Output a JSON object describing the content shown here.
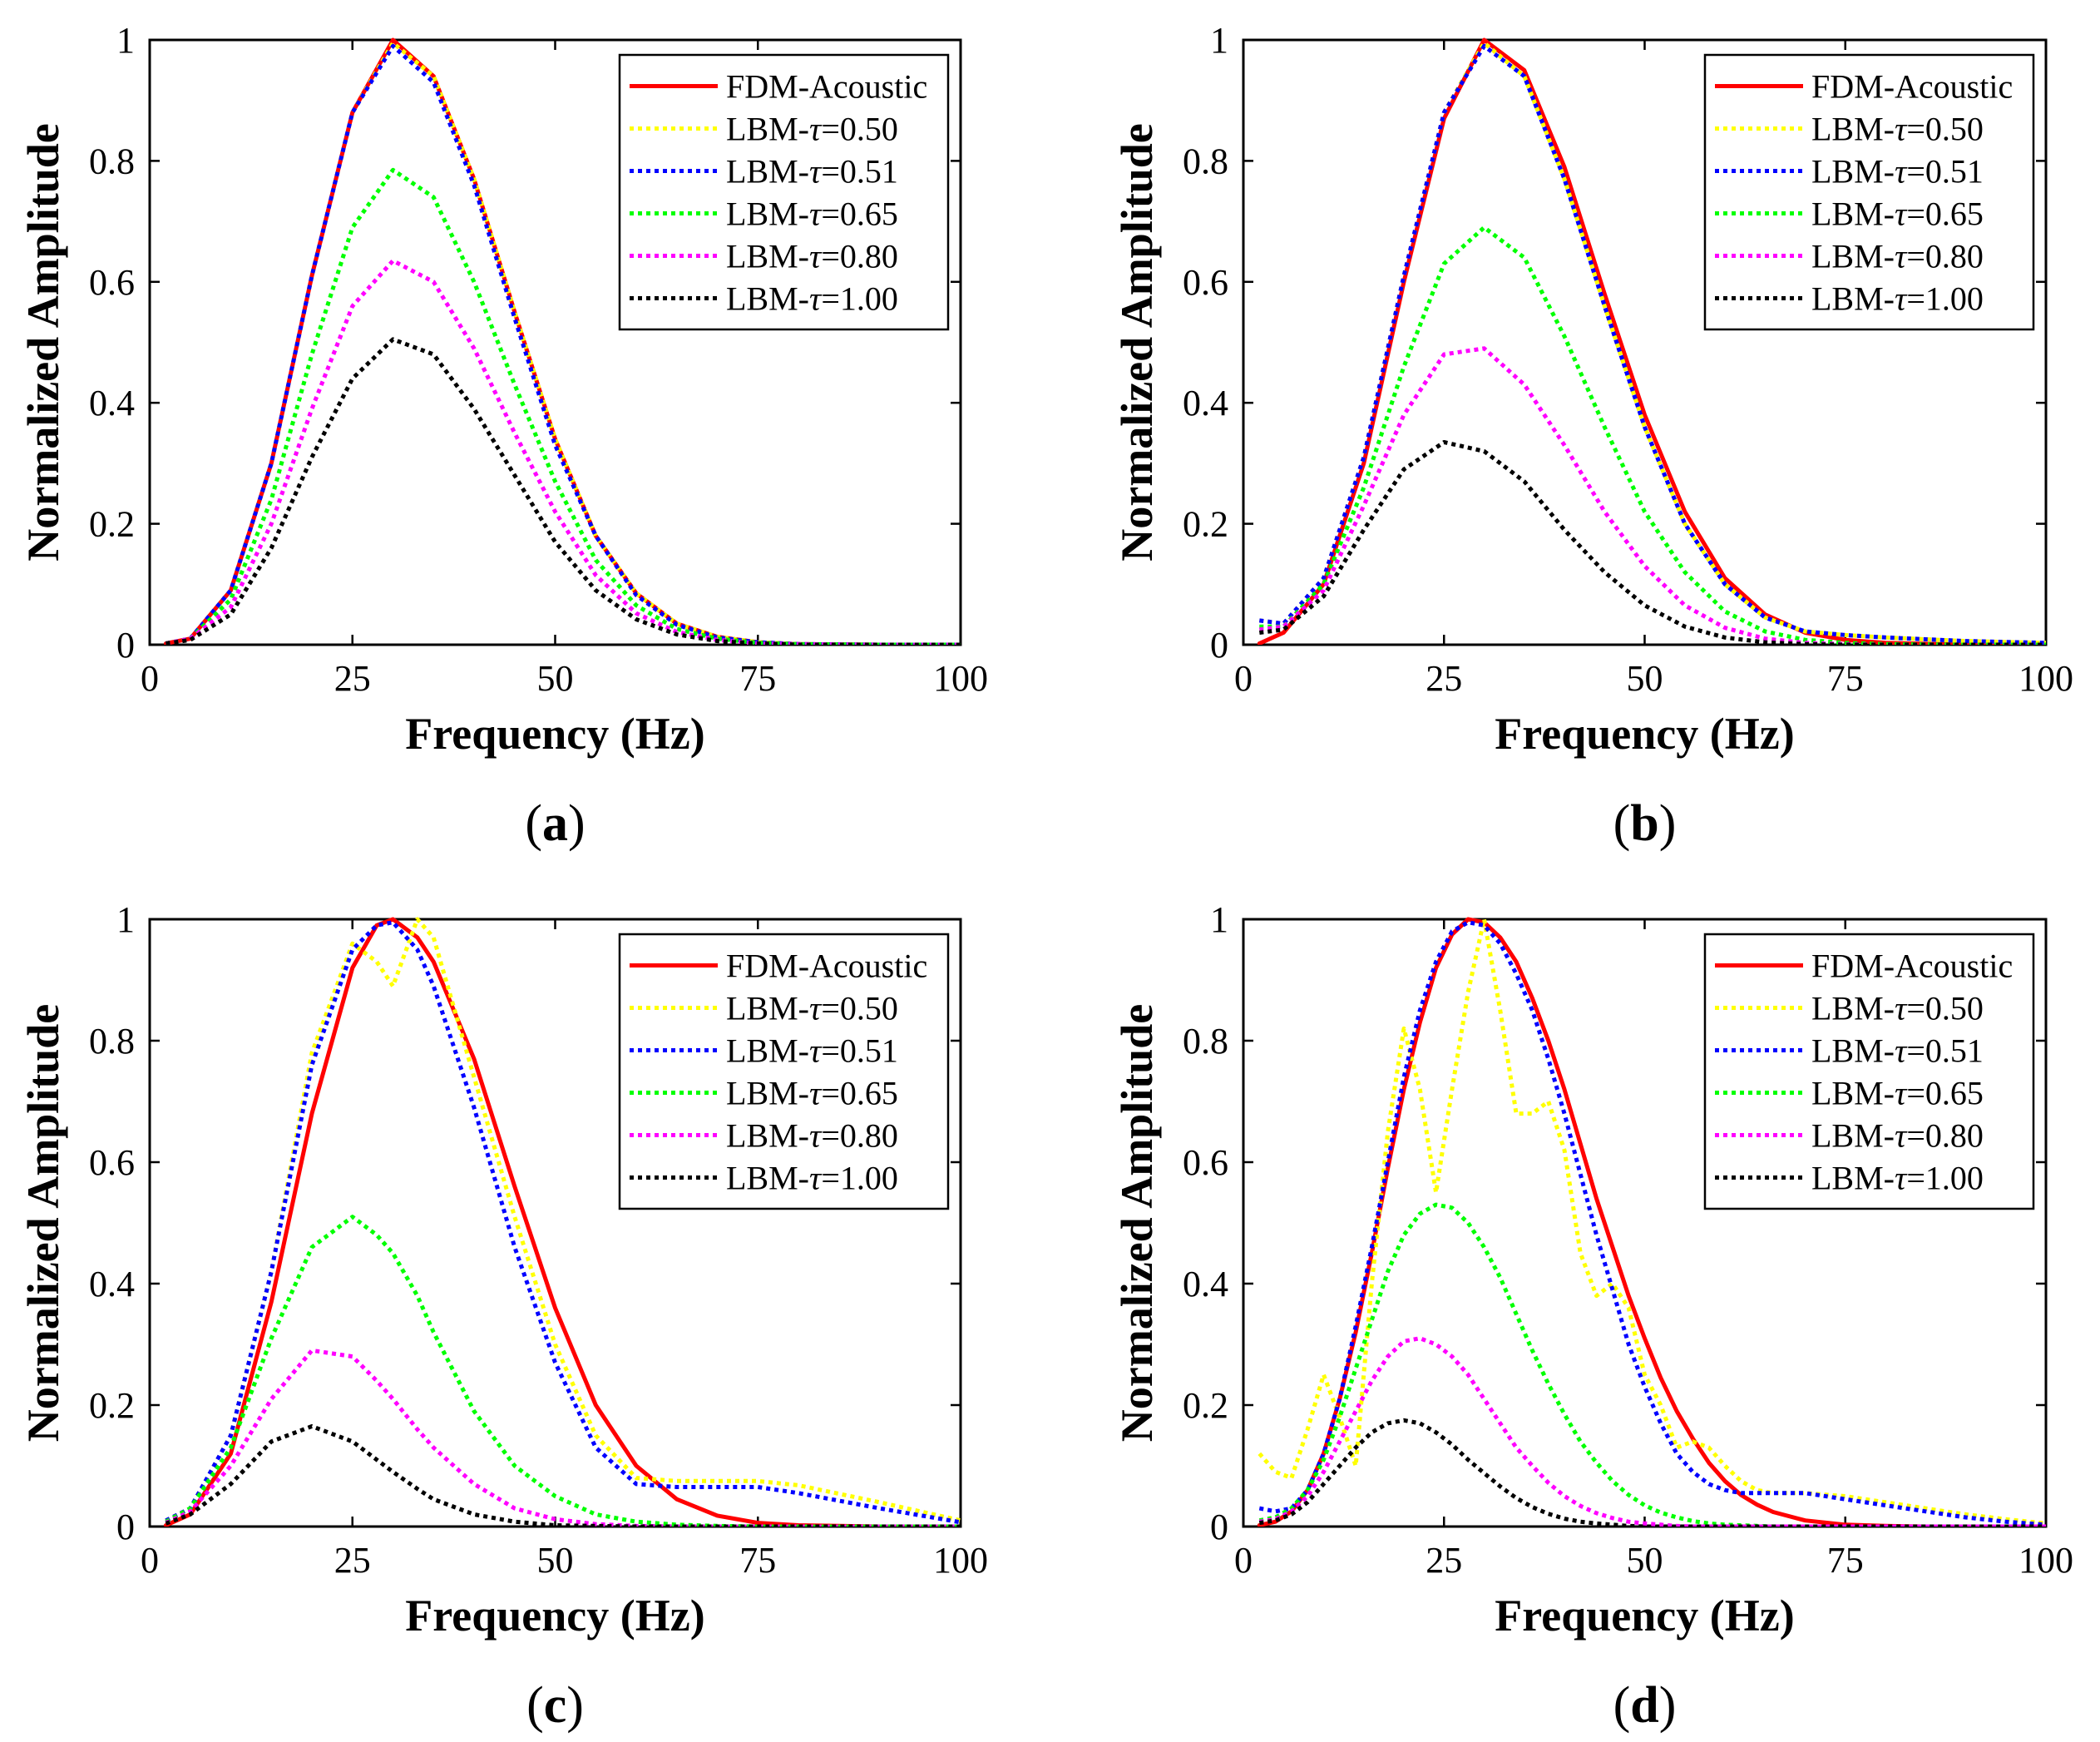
{
  "chart_data": [
    {
      "panel_label": "(a)",
      "type": "line",
      "xlabel": "Frequency (Hz)",
      "ylabel": "Normalized Amplitude",
      "xlim": [
        0,
        100
      ],
      "ylim": [
        0,
        1
      ],
      "xticks": [
        "0",
        "25",
        "50",
        "75",
        "100"
      ],
      "yticks": [
        "0",
        "0.2",
        "0.4",
        "0.6",
        "0.8",
        "1"
      ],
      "legend_position": "top-right",
      "x": [
        2,
        5,
        10,
        15,
        20,
        25,
        30,
        35,
        40,
        45,
        50,
        55,
        60,
        65,
        70,
        75,
        80,
        90,
        100
      ],
      "series": [
        {
          "name": "FDM-Acoustic",
          "color": "#ff0000",
          "style": "solid",
          "values": [
            0.002,
            0.01,
            0.09,
            0.3,
            0.61,
            0.88,
            1.0,
            0.94,
            0.77,
            0.55,
            0.34,
            0.18,
            0.085,
            0.035,
            0.013,
            0.004,
            0.001,
            0,
            0
          ]
        },
        {
          "name": "LBM-τ=0.50",
          "color": "#ffff00",
          "style": "dotted",
          "values": [
            0.002,
            0.01,
            0.09,
            0.3,
            0.61,
            0.88,
            0.995,
            0.94,
            0.77,
            0.55,
            0.34,
            0.18,
            0.085,
            0.035,
            0.013,
            0.004,
            0.001,
            0,
            0
          ]
        },
        {
          "name": "LBM-τ=0.51",
          "color": "#0000ff",
          "style": "dotted",
          "values": [
            0.002,
            0.01,
            0.09,
            0.3,
            0.61,
            0.88,
            0.99,
            0.93,
            0.76,
            0.54,
            0.33,
            0.18,
            0.082,
            0.033,
            0.012,
            0.004,
            0.001,
            0,
            0
          ]
        },
        {
          "name": "LBM-τ=0.65",
          "color": "#00ff00",
          "style": "dotted",
          "values": [
            0.002,
            0.01,
            0.075,
            0.24,
            0.48,
            0.69,
            0.785,
            0.74,
            0.6,
            0.43,
            0.27,
            0.14,
            0.065,
            0.026,
            0.01,
            0.003,
            0.001,
            0,
            0
          ]
        },
        {
          "name": "LBM-τ=0.80",
          "color": "#ff00ff",
          "style": "dotted",
          "values": [
            0.002,
            0.01,
            0.062,
            0.2,
            0.39,
            0.56,
            0.635,
            0.6,
            0.49,
            0.35,
            0.22,
            0.115,
            0.052,
            0.021,
            0.008,
            0.002,
            0.001,
            0,
            0
          ]
        },
        {
          "name": "LBM-τ=1.00",
          "color": "#000000",
          "style": "dotted",
          "values": [
            0.002,
            0.008,
            0.05,
            0.16,
            0.31,
            0.44,
            0.505,
            0.48,
            0.39,
            0.28,
            0.17,
            0.09,
            0.042,
            0.017,
            0.006,
            0.002,
            0,
            0,
            0
          ]
        }
      ]
    },
    {
      "panel_label": "(b)",
      "type": "line",
      "xlabel": "Frequency (Hz)",
      "ylabel": "Normalized Amplitude",
      "xlim": [
        0,
        100
      ],
      "ylim": [
        0,
        1
      ],
      "xticks": [
        "0",
        "25",
        "50",
        "75",
        "100"
      ],
      "yticks": [
        "0",
        "0.2",
        "0.4",
        "0.6",
        "0.8",
        "1"
      ],
      "legend_position": "top-right",
      "x": [
        2,
        5,
        10,
        15,
        20,
        25,
        30,
        35,
        40,
        45,
        50,
        55,
        60,
        65,
        70,
        75,
        80,
        90,
        100
      ],
      "series": [
        {
          "name": "FDM-Acoustic",
          "color": "#ff0000",
          "style": "solid",
          "values": [
            0.002,
            0.02,
            0.1,
            0.3,
            0.6,
            0.87,
            1.0,
            0.95,
            0.79,
            0.58,
            0.38,
            0.22,
            0.11,
            0.05,
            0.02,
            0.008,
            0.003,
            0,
            0
          ]
        },
        {
          "name": "LBM-τ=0.50",
          "color": "#ffff00",
          "style": "dotted",
          "values": [
            0.04,
            0.035,
            0.11,
            0.31,
            0.61,
            0.88,
            0.995,
            0.94,
            0.77,
            0.56,
            0.36,
            0.2,
            0.1,
            0.045,
            0.022,
            0.016,
            0.012,
            0.006,
            0.003
          ]
        },
        {
          "name": "LBM-τ=0.51",
          "color": "#0000ff",
          "style": "dotted",
          "values": [
            0.04,
            0.035,
            0.11,
            0.31,
            0.61,
            0.88,
            0.99,
            0.94,
            0.77,
            0.56,
            0.36,
            0.2,
            0.1,
            0.045,
            0.022,
            0.016,
            0.012,
            0.006,
            0.003
          ]
        },
        {
          "name": "LBM-τ=0.65",
          "color": "#00ff00",
          "style": "dotted",
          "values": [
            0.03,
            0.03,
            0.1,
            0.26,
            0.46,
            0.63,
            0.69,
            0.64,
            0.51,
            0.36,
            0.22,
            0.12,
            0.055,
            0.022,
            0.008,
            0.003,
            0.001,
            0,
            0
          ]
        },
        {
          "name": "LBM-τ=0.80",
          "color": "#ff00ff",
          "style": "dotted",
          "values": [
            0.025,
            0.03,
            0.09,
            0.23,
            0.38,
            0.48,
            0.49,
            0.43,
            0.33,
            0.22,
            0.13,
            0.065,
            0.028,
            0.01,
            0.003,
            0.001,
            0,
            0,
            0
          ]
        },
        {
          "name": "LBM-τ=1.00",
          "color": "#000000",
          "style": "dotted",
          "values": [
            0.02,
            0.025,
            0.08,
            0.19,
            0.29,
            0.335,
            0.32,
            0.27,
            0.19,
            0.12,
            0.065,
            0.03,
            0.012,
            0.004,
            0.001,
            0,
            0,
            0,
            0
          ]
        }
      ]
    },
    {
      "panel_label": "(c)",
      "type": "line",
      "xlabel": "Frequency (Hz)",
      "ylabel": "Normalized Amplitude",
      "xlim": [
        0,
        100
      ],
      "ylim": [
        0,
        1
      ],
      "xticks": [
        "0",
        "25",
        "50",
        "75",
        "100"
      ],
      "yticks": [
        "0",
        "0.2",
        "0.4",
        "0.6",
        "0.8",
        "1"
      ],
      "legend_position": "top-right",
      "x": [
        2,
        5,
        10,
        15,
        20,
        25,
        28,
        30,
        33,
        35,
        40,
        45,
        50,
        55,
        60,
        65,
        70,
        75,
        80,
        90,
        100
      ],
      "series": [
        {
          "name": "FDM-Acoustic",
          "color": "#ff0000",
          "style": "solid",
          "values": [
            0.002,
            0.02,
            0.12,
            0.37,
            0.68,
            0.92,
            0.99,
            1.0,
            0.97,
            0.93,
            0.77,
            0.56,
            0.36,
            0.2,
            0.1,
            0.045,
            0.018,
            0.006,
            0.002,
            0,
            0
          ]
        },
        {
          "name": "LBM-τ=0.50",
          "color": "#ffff00",
          "style": "dotted",
          "values": [
            0.01,
            0.03,
            0.15,
            0.42,
            0.78,
            0.96,
            0.93,
            0.89,
            1.0,
            0.97,
            0.74,
            0.51,
            0.3,
            0.15,
            0.08,
            0.075,
            0.075,
            0.075,
            0.068,
            0.04,
            0.01
          ]
        },
        {
          "name": "LBM-τ=0.51",
          "color": "#0000ff",
          "style": "dotted",
          "values": [
            0.01,
            0.03,
            0.15,
            0.42,
            0.76,
            0.95,
            0.99,
            0.995,
            0.95,
            0.89,
            0.69,
            0.46,
            0.27,
            0.13,
            0.07,
            0.065,
            0.065,
            0.065,
            0.055,
            0.03,
            0.007
          ]
        },
        {
          "name": "LBM-τ=0.65",
          "color": "#00ff00",
          "style": "dotted",
          "values": [
            0.008,
            0.03,
            0.13,
            0.31,
            0.46,
            0.51,
            0.48,
            0.45,
            0.38,
            0.32,
            0.19,
            0.1,
            0.05,
            0.02,
            0.008,
            0.003,
            0.001,
            0,
            0,
            0,
            0
          ]
        },
        {
          "name": "LBM-τ=0.80",
          "color": "#ff00ff",
          "style": "dotted",
          "values": [
            0.006,
            0.025,
            0.1,
            0.21,
            0.29,
            0.28,
            0.24,
            0.21,
            0.16,
            0.13,
            0.07,
            0.03,
            0.012,
            0.004,
            0.001,
            0,
            0,
            0,
            0,
            0,
            0
          ]
        },
        {
          "name": "LBM-τ=1.00",
          "color": "#000000",
          "style": "dotted",
          "values": [
            0.005,
            0.02,
            0.07,
            0.14,
            0.165,
            0.14,
            0.11,
            0.09,
            0.062,
            0.045,
            0.02,
            0.008,
            0.002,
            0.001,
            0,
            0,
            0,
            0,
            0,
            0,
            0
          ]
        }
      ]
    },
    {
      "panel_label": "(d)",
      "type": "line",
      "xlabel": "Frequency (Hz)",
      "ylabel": "Normalized Amplitude",
      "xlim": [
        0,
        100
      ],
      "ylim": [
        0,
        1
      ],
      "xticks": [
        "0",
        "25",
        "50",
        "75",
        "100"
      ],
      "yticks": [
        "0",
        "0.2",
        "0.4",
        "0.6",
        "0.8",
        "1"
      ],
      "legend_position": "top-right",
      "x": [
        2,
        4,
        6,
        8,
        10,
        12,
        14,
        16,
        18,
        20,
        22,
        24,
        26,
        28,
        30,
        32,
        34,
        36,
        38,
        40,
        42,
        44,
        46,
        48,
        50,
        52,
        54,
        56,
        58,
        60,
        62,
        64,
        66,
        70,
        75,
        80,
        85,
        90,
        95,
        100
      ],
      "series": [
        {
          "name": "FDM-Acoustic",
          "color": "#ff0000",
          "style": "solid",
          "values": [
            0.002,
            0.008,
            0.025,
            0.06,
            0.12,
            0.21,
            0.32,
            0.45,
            0.59,
            0.72,
            0.83,
            0.92,
            0.975,
            1.0,
            0.995,
            0.97,
            0.93,
            0.87,
            0.8,
            0.72,
            0.63,
            0.54,
            0.46,
            0.38,
            0.31,
            0.245,
            0.19,
            0.145,
            0.105,
            0.075,
            0.052,
            0.036,
            0.024,
            0.01,
            0.003,
            0.001,
            0,
            0,
            0,
            0
          ]
        },
        {
          "name": "LBM-τ=0.50",
          "color": "#ffff00",
          "style": "dotted",
          "values": [
            0.12,
            0.09,
            0.08,
            0.16,
            0.25,
            0.18,
            0.1,
            0.4,
            0.65,
            0.82,
            0.72,
            0.55,
            0.72,
            0.88,
            1.0,
            0.85,
            0.68,
            0.68,
            0.7,
            0.62,
            0.45,
            0.38,
            0.4,
            0.36,
            0.25,
            0.2,
            0.13,
            0.14,
            0.13,
            0.1,
            0.075,
            0.06,
            0.055,
            0.055,
            0.05,
            0.04,
            0.03,
            0.02,
            0.012,
            0.005
          ]
        },
        {
          "name": "LBM-τ=0.51",
          "color": "#0000ff",
          "style": "dotted",
          "values": [
            0.03,
            0.025,
            0.03,
            0.06,
            0.12,
            0.21,
            0.33,
            0.46,
            0.6,
            0.74,
            0.85,
            0.93,
            0.98,
            0.995,
            0.99,
            0.96,
            0.91,
            0.85,
            0.77,
            0.68,
            0.58,
            0.48,
            0.39,
            0.3,
            0.23,
            0.17,
            0.12,
            0.09,
            0.07,
            0.06,
            0.055,
            0.055,
            0.055,
            0.055,
            0.045,
            0.035,
            0.025,
            0.015,
            0.008,
            0.003
          ]
        },
        {
          "name": "LBM-τ=0.65",
          "color": "#00ff00",
          "style": "dotted",
          "values": [
            0.01,
            0.015,
            0.03,
            0.06,
            0.11,
            0.18,
            0.26,
            0.34,
            0.42,
            0.48,
            0.515,
            0.53,
            0.525,
            0.5,
            0.46,
            0.41,
            0.35,
            0.29,
            0.235,
            0.185,
            0.14,
            0.105,
            0.075,
            0.052,
            0.035,
            0.023,
            0.015,
            0.009,
            0.005,
            0.003,
            0.002,
            0.001,
            0,
            0,
            0,
            0,
            0,
            0,
            0,
            0
          ]
        },
        {
          "name": "LBM-τ=0.80",
          "color": "#ff00ff",
          "style": "dotted",
          "values": [
            0.008,
            0.012,
            0.025,
            0.05,
            0.09,
            0.14,
            0.19,
            0.24,
            0.28,
            0.305,
            0.31,
            0.3,
            0.28,
            0.25,
            0.21,
            0.17,
            0.13,
            0.1,
            0.072,
            0.05,
            0.034,
            0.022,
            0.014,
            0.008,
            0.005,
            0.003,
            0.001,
            0,
            0,
            0,
            0,
            0,
            0,
            0,
            0,
            0,
            0,
            0,
            0,
            0
          ]
        },
        {
          "name": "LBM-τ=1.00",
          "color": "#000000",
          "style": "dotted",
          "values": [
            0.006,
            0.01,
            0.02,
            0.04,
            0.07,
            0.1,
            0.13,
            0.155,
            0.17,
            0.175,
            0.17,
            0.155,
            0.135,
            0.11,
            0.088,
            0.066,
            0.047,
            0.032,
            0.021,
            0.013,
            0.008,
            0.005,
            0.003,
            0.001,
            0,
            0,
            0,
            0,
            0,
            0,
            0,
            0,
            0,
            0,
            0,
            0,
            0,
            0,
            0,
            0
          ]
        }
      ]
    }
  ]
}
